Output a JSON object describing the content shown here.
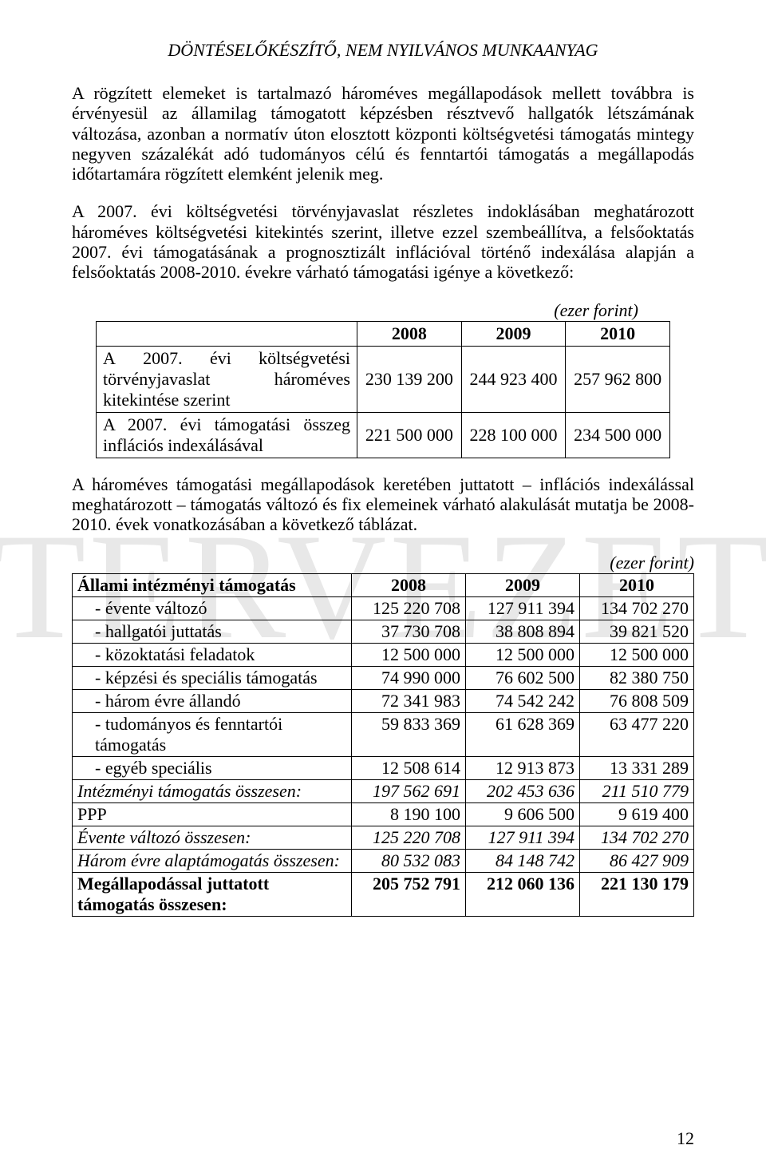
{
  "watermark": "TERVEZET",
  "header": "DÖNTÉSELŐKÉSZÍTŐ, NEM NYILVÁNOS MUNKAANYAG",
  "para1": "A rögzített elemeket is tartalmazó hároméves megállapodások mellett továbbra is érvényesül az államilag támogatott képzésben résztvevő hallgatók létszámának változása, azonban a normatív úton elosztott központi költségvetési támogatás mintegy negyven százalékát adó tudományos célú és fenntartói támogatás a megállapodás időtartamára rögzített elemként jelenik meg.",
  "para2": "A 2007. évi költségvetési törvényjavaslat részletes indoklásában meghatározott hároméves költségvetési kitekintés szerint, illetve ezzel szembeállítva, a felsőoktatás 2007. évi támogatásának a prognosztizált inflációval történő indexálása alapján a felsőoktatás 2008-2010. évekre várható támogatási igénye a következő:",
  "unit": "(ezer forint)",
  "table1": {
    "years": [
      "2008",
      "2009",
      "2010"
    ],
    "rows": [
      {
        "label": "A 2007. évi költségvetési törvényjavaslat hároméves kitekintése szerint",
        "v": [
          "230 139 200",
          "244 923 400",
          "257 962 800"
        ]
      },
      {
        "label": "A 2007. évi támogatási összeg inflációs indexálásával",
        "v": [
          "221 500 000",
          "228 100 000",
          "234 500 000"
        ]
      }
    ]
  },
  "para3": "A hároméves támogatási megállapodások keretében juttatott – inflációs indexálással meghatározott – támogatás változó és fix elemeinek várható alakulását mutatja be 2008-2010. évek vonatkozásában a következő táblázat.",
  "table2": {
    "header": "Állami intézményi támogatás",
    "years": [
      "2008",
      "2009",
      "2010"
    ],
    "rows": [
      {
        "label": "-   évente változó",
        "v": [
          "125 220 708",
          "127 911 394",
          "134 702 270"
        ],
        "indent": true
      },
      {
        "label": "-   hallgatói juttatás",
        "v": [
          "37 730 708",
          "38 808 894",
          "39 821 520"
        ],
        "indent": true
      },
      {
        "label": "-   közoktatási feladatok",
        "v": [
          "12 500 000",
          "12 500 000",
          "12 500 000"
        ],
        "indent": true
      },
      {
        "label": "-   képzési és speciális támogatás",
        "v": [
          "74 990 000",
          "76 602 500",
          "82 380 750"
        ],
        "indent": true
      },
      {
        "label": "-   három évre állandó",
        "v": [
          "72 341 983",
          "74 542 242",
          "76 808 509"
        ],
        "indent": true
      },
      {
        "label": "-   tudományos és fenntartói támogatás",
        "v": [
          "59 833 369",
          "61 628 369",
          "63 477 220"
        ],
        "indent": true
      },
      {
        "label": "-   egyéb speciális",
        "v": [
          "12 508 614",
          "12 913 873",
          "13 331 289"
        ],
        "indent": true
      },
      {
        "label": "Intézményi támogatás összesen:",
        "v": [
          "197 562 691",
          "202 453 636",
          "211 510 779"
        ],
        "italic": true
      },
      {
        "label": "PPP",
        "v": [
          "8 190 100",
          "9 606 500",
          "9 619 400"
        ]
      },
      {
        "label": "Évente változó összesen:",
        "v": [
          "125 220 708",
          "127 911 394",
          "134 702 270"
        ],
        "italic": true
      },
      {
        "label": "Három évre alaptámogatás összesen:",
        "v": [
          "80 532 083",
          "84 148 742",
          "86 427 909"
        ],
        "italic": true
      },
      {
        "label": "Megállapodással juttatott támogatás összesen:",
        "v": [
          "205 752 791",
          "212 060 136",
          "221 130 179"
        ],
        "bold": true
      }
    ]
  },
  "pagenum": "12"
}
